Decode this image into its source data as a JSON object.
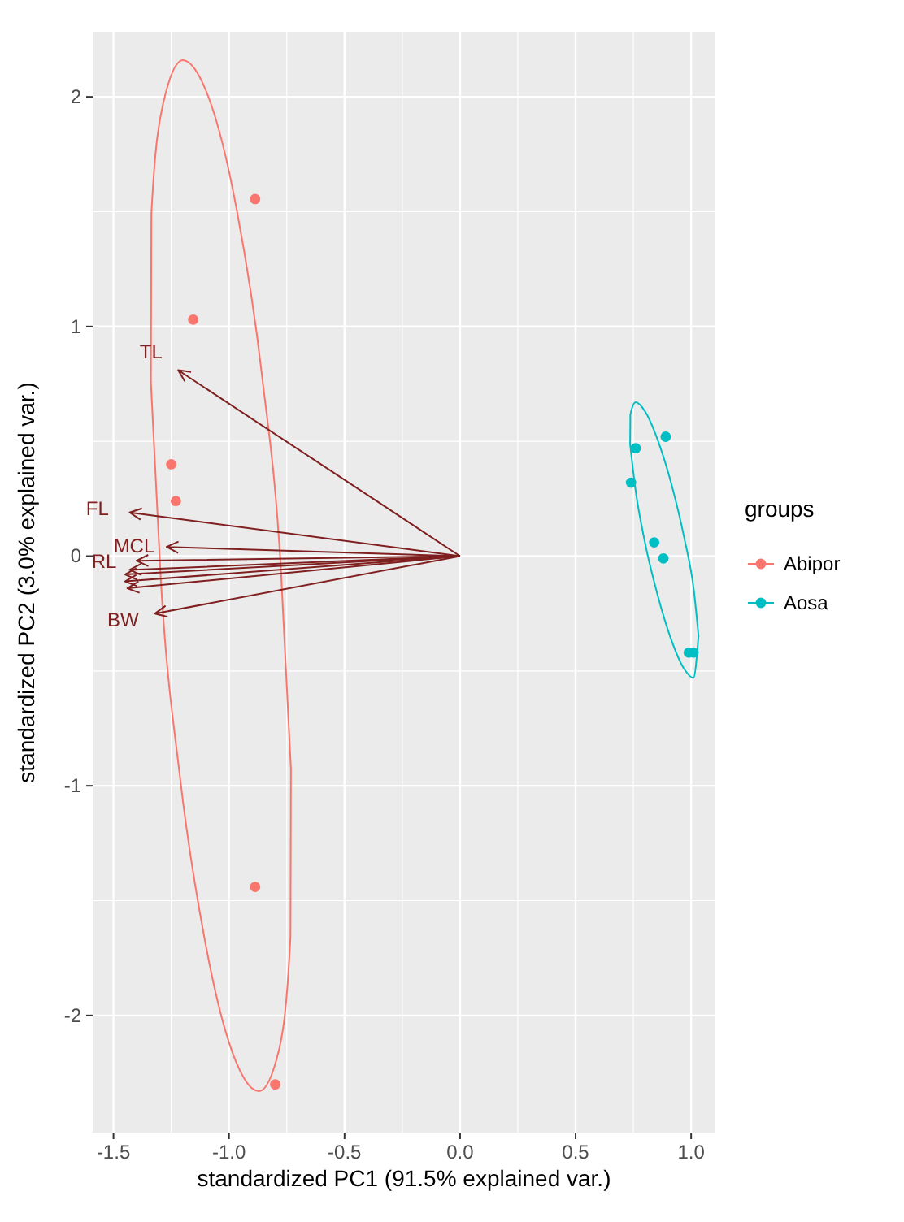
{
  "chart_data": {
    "type": "scatter",
    "xlabel": "standardized PC1 (91.5% explained var.)",
    "ylabel": "standardized PC2 (3.0% explained var.)",
    "legend_title": "groups",
    "legend": "right",
    "grid": true,
    "marker": "circle",
    "xlim": [
      -1.59,
      1.105
    ],
    "ylim": [
      -2.51,
      2.28
    ],
    "xticks": [
      -1.5,
      {
        "value": -1,
        "label": "-1.0"
      },
      -0.5,
      {
        "value": 0,
        "label": "0.0"
      },
      0.5,
      {
        "value": 1,
        "label": "1.0"
      }
    ],
    "yticks": [
      -2,
      -1,
      0,
      1,
      2
    ],
    "series": [
      {
        "type": "line",
        "color": "#f8766d",
        "marker": "none",
        "x": [
          -1.338,
          -1.336,
          -1.286,
          -1.2,
          -1.088,
          -0.968,
          -0.858,
          -0.775,
          -0.732
        ],
        "values": [
          0.757,
          1.488,
          1.967,
          2.16,
          1.997,
          1.516,
          0.793,
          -0.065,
          -0.927
        ]
      },
      {
        "type": "line",
        "color": "#f8766d",
        "marker": "none",
        "x": [
          -1.338,
          -1.295,
          -1.212,
          -1.102,
          -0.983,
          -0.87,
          -0.784,
          -0.734,
          -0.732
        ],
        "values": [
          0.757,
          -0.105,
          -0.963,
          -1.686,
          -2.167,
          -2.33,
          -2.151,
          -1.658,
          -0.927
        ]
      },
      {
        "type": "line",
        "color": "#00bfc4",
        "marker": "none",
        "x": [
          0.736,
          0.737,
          0.76,
          0.802,
          0.857,
          0.916,
          0.97,
          1.012,
          1.032
        ],
        "values": [
          0.487,
          0.616,
          0.67,
          0.628,
          0.501,
          0.309,
          0.08,
          -0.151,
          -0.347
        ]
      },
      {
        "type": "line",
        "color": "#00bfc4",
        "marker": "none",
        "x": [
          0.736,
          0.759,
          0.8,
          0.855,
          0.913,
          0.968,
          1.01,
          1.032
        ],
        "values": [
          0.487,
          0.291,
          0.06,
          -0.17,
          -0.361,
          -0.488,
          -0.53,
          -0.347
        ]
      },
      {
        "name": "Abipor",
        "color": "#f8766d",
        "x": [
          -0.887,
          -1.155,
          -1.25,
          -1.23,
          -0.887,
          -0.8
        ],
        "values": [
          1.555,
          1.03,
          0.4,
          0.24,
          -1.44,
          -2.3
        ]
      },
      {
        "name": "Aosa",
        "color": "#00bfc4",
        "x": [
          0.76,
          0.89,
          0.74,
          0.84,
          0.88,
          0.99,
          1.01
        ],
        "values": [
          0.47,
          0.52,
          0.32,
          0.06,
          -0.01,
          -0.42,
          -0.42
        ]
      }
    ],
    "annotations": [
      "TL",
      "FL",
      "MCL",
      "RL",
      "BW"
    ]
  }
}
